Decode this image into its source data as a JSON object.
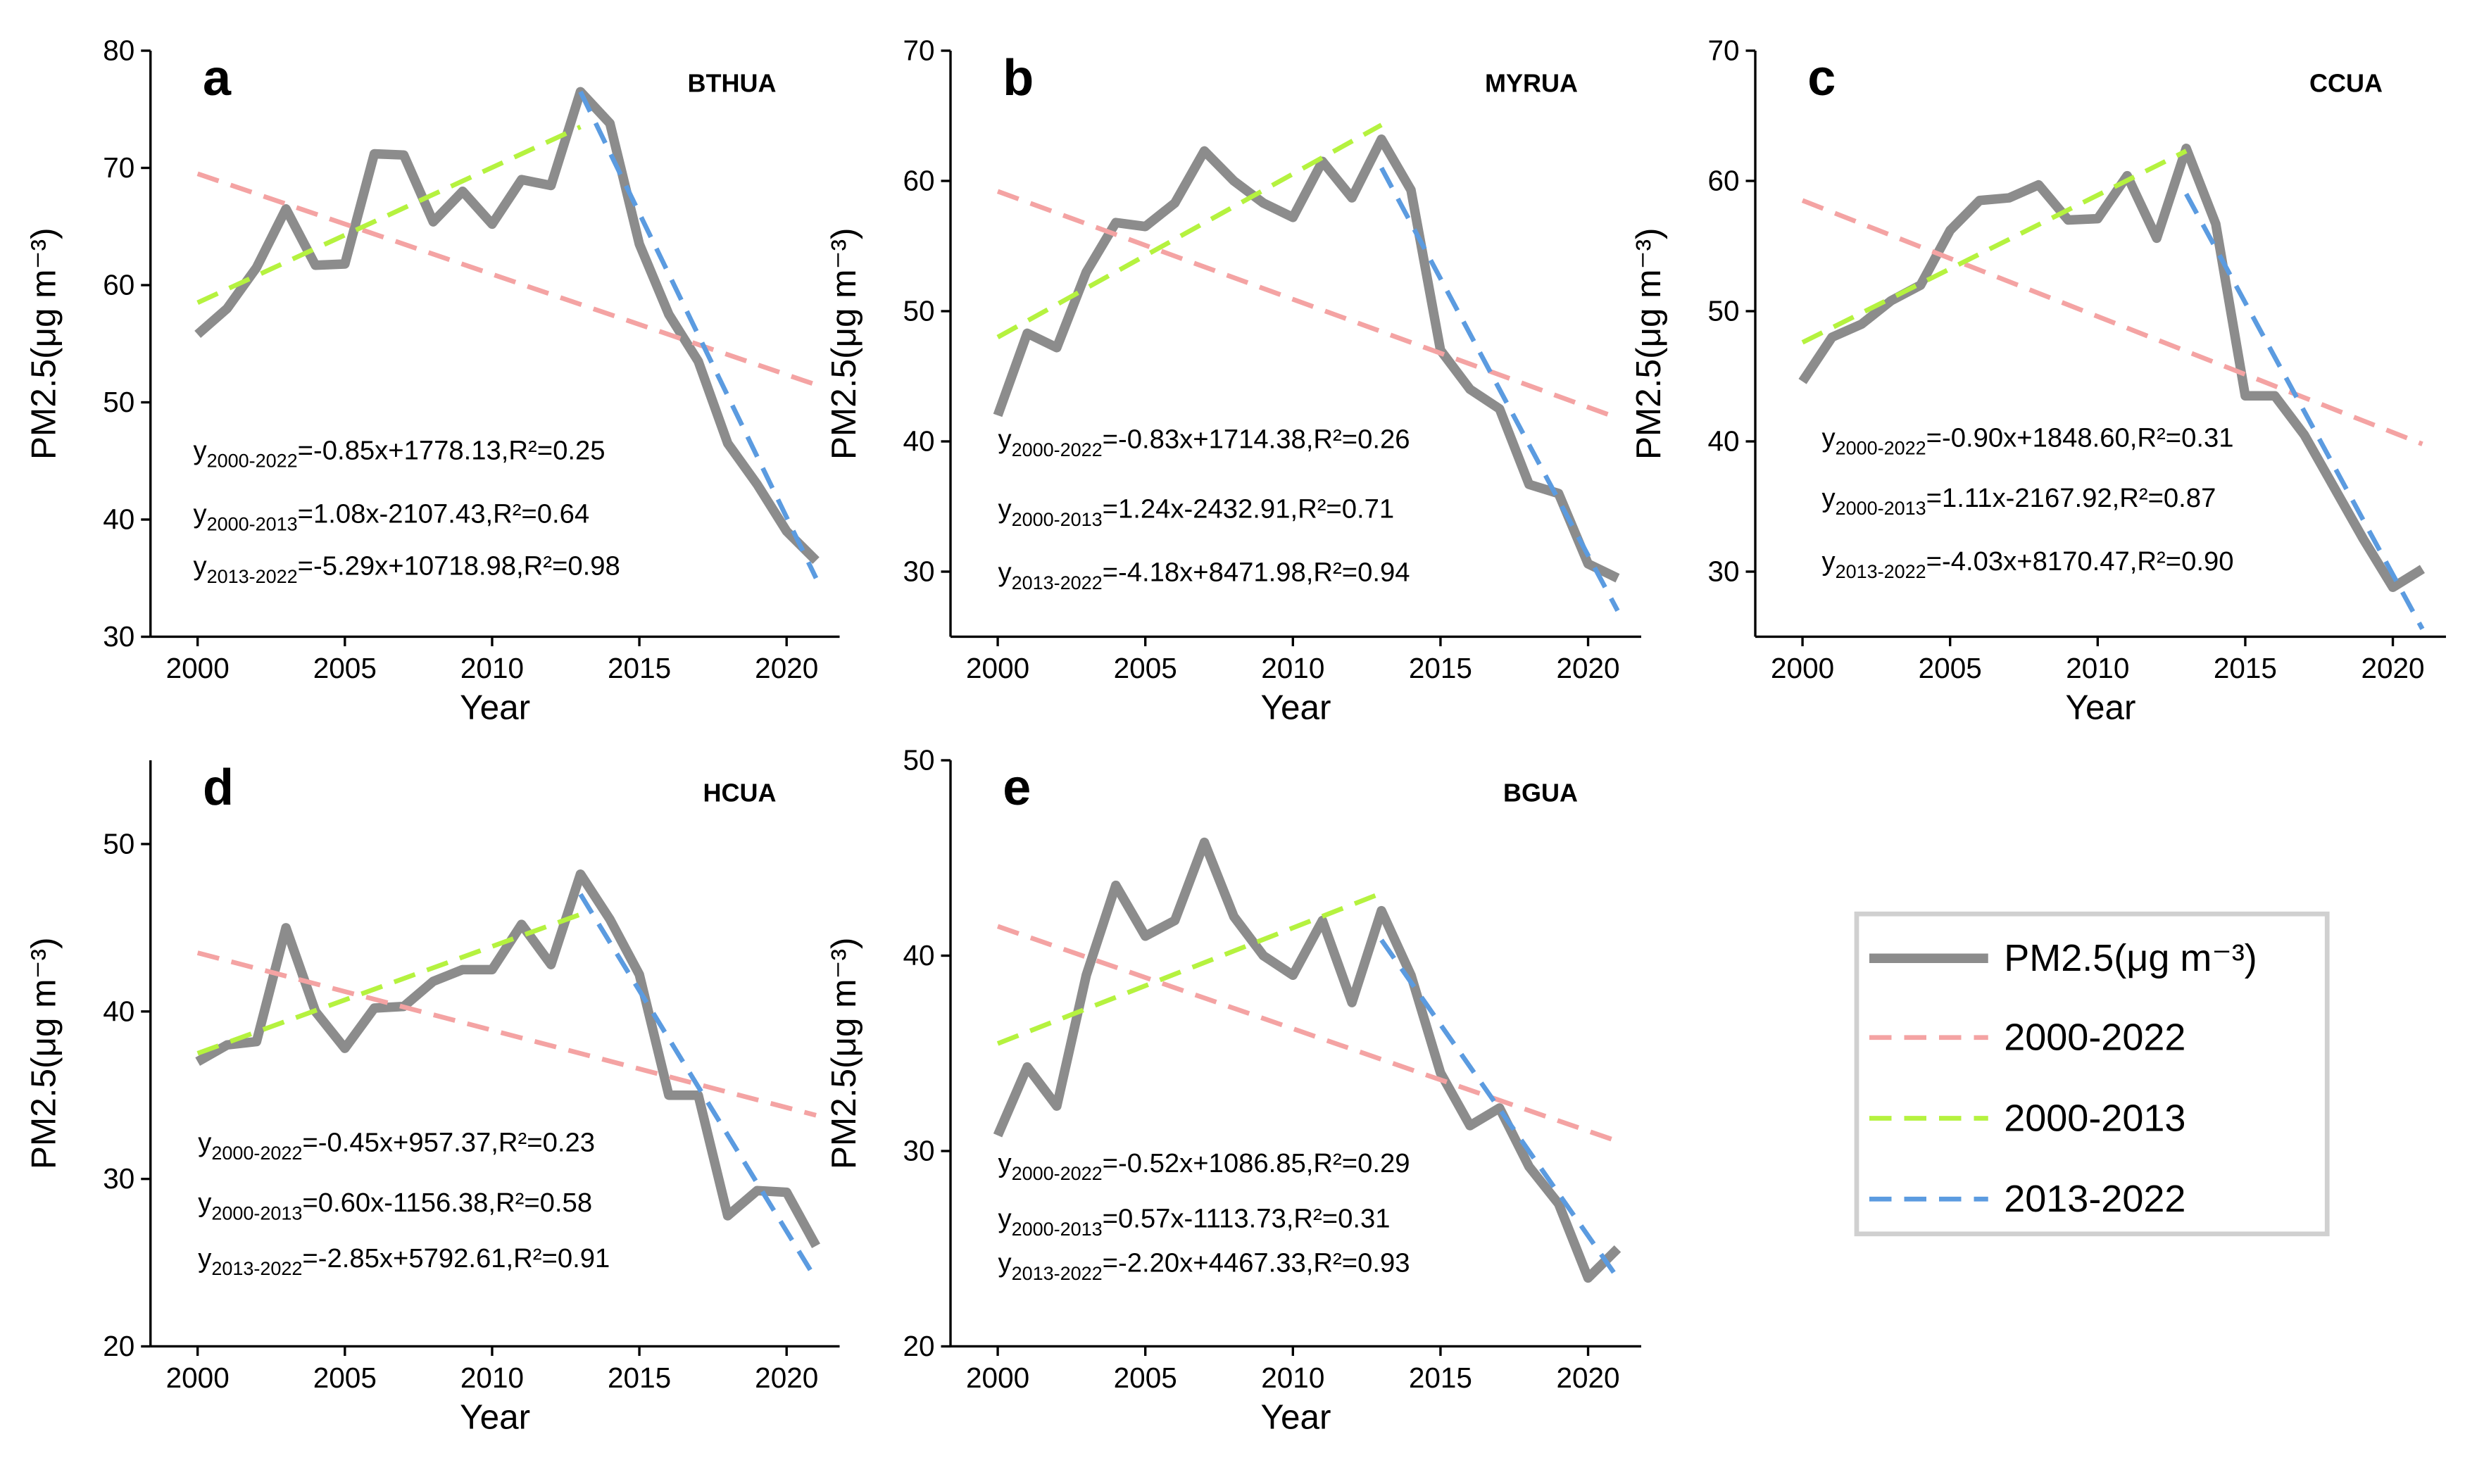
{
  "chart_data": [
    {
      "type": "line",
      "panel": "a",
      "title": "BTHUA",
      "x_label": "Year",
      "y_label": "PM2.5(μg m⁻³)",
      "x": [
        2000,
        2001,
        2002,
        2003,
        2004,
        2005,
        2006,
        2007,
        2008,
        2009,
        2010,
        2011,
        2012,
        2013,
        2014,
        2015,
        2016,
        2017,
        2018,
        2019,
        2020,
        2021
      ],
      "xlim": [
        1998.4,
        2021.8
      ],
      "xticks": [
        2000,
        2005,
        2010,
        2015,
        2020
      ],
      "ylim": [
        30,
        80
      ],
      "yticks": [
        30,
        40,
        50,
        60,
        70,
        80
      ],
      "series": [
        {
          "name": "PM2.5(μg m⁻³)",
          "color": "#8c8c8c",
          "values": [
            55.8,
            58,
            61.5,
            66.5,
            61.7,
            61.8,
            71.2,
            71.1,
            65.4,
            68,
            65.2,
            69,
            68.5,
            76.5,
            73.8,
            63.5,
            57.5,
            53.5,
            46.5,
            43,
            39,
            36.5
          ]
        },
        {
          "name": "2000-2022",
          "color": "#f4a3a3",
          "dash": true,
          "x": [
            2000,
            2021
          ],
          "values": [
            69.5,
            51.5
          ]
        },
        {
          "name": "2000-2013",
          "color": "#b5f23f",
          "dash": true,
          "x": [
            2000,
            2013
          ],
          "values": [
            58.5,
            73.5
          ]
        },
        {
          "name": "2013-2022",
          "color": "#5b9be0",
          "dash": true,
          "x": [
            2013,
            2021
          ],
          "values": [
            76.5,
            35
          ]
        }
      ],
      "annotations": [
        {
          "prefix": "y",
          "subscript": "2000-2022",
          "text": "=-0.85x+1778.13,R²=0.25"
        },
        {
          "prefix": "y",
          "subscript": "2000-2013",
          "text": "=1.08x-2107.43,R²=0.64"
        },
        {
          "prefix": "y",
          "subscript": "2013-2022",
          "text": "=-5.29x+10718.98,R²=0.98"
        }
      ]
    },
    {
      "type": "line",
      "panel": "b",
      "title": "MYRUA",
      "x_label": "Year",
      "y_label": "PM2.5(μg m⁻³)",
      "x": [
        2000,
        2001,
        2002,
        2003,
        2004,
        2005,
        2006,
        2007,
        2008,
        2009,
        2010,
        2011,
        2012,
        2013,
        2014,
        2015,
        2016,
        2017,
        2018,
        2019,
        2020,
        2021
      ],
      "xlim": [
        1998.4,
        2021.8
      ],
      "xticks": [
        2000,
        2005,
        2010,
        2015,
        2020
      ],
      "ylim": [
        25,
        70
      ],
      "yticks": [
        30,
        40,
        50,
        60,
        70
      ],
      "series": [
        {
          "color": "#8c8c8c",
          "values": [
            42,
            48.3,
            47.2,
            53,
            56.8,
            56.5,
            58.3,
            62.3,
            60,
            58.3,
            57.2,
            61.5,
            58.7,
            63.2,
            59.3,
            47,
            44,
            42.5,
            36.7,
            36,
            30.6,
            29.5
          ]
        },
        {
          "color": "#f4a3a3",
          "dash": true,
          "x": [
            2000,
            2021
          ],
          "values": [
            59.2,
            41.8
          ]
        },
        {
          "color": "#b5f23f",
          "dash": true,
          "x": [
            2000,
            2013
          ],
          "values": [
            48,
            64.3
          ]
        },
        {
          "color": "#5b9be0",
          "dash": true,
          "x": [
            2013,
            2021
          ],
          "values": [
            61,
            27
          ]
        }
      ],
      "annotations": [
        {
          "prefix": "y",
          "subscript": "2000-2022",
          "text": "=-0.83x+1714.38,R²=0.26"
        },
        {
          "prefix": "y",
          "subscript": "2000-2013",
          "text": "=1.24x-2432.91,R²=0.71"
        },
        {
          "prefix": "y",
          "subscript": "2013-2022",
          "text": "=-4.18x+8471.98,R²=0.94"
        }
      ]
    },
    {
      "type": "line",
      "panel": "c",
      "title": "CCUA",
      "x_label": "Year",
      "y_label": "PM2.5(μg m⁻³)",
      "x": [
        2000,
        2001,
        2002,
        2003,
        2004,
        2005,
        2006,
        2007,
        2008,
        2009,
        2010,
        2011,
        2012,
        2013,
        2014,
        2015,
        2016,
        2017,
        2018,
        2019,
        2020,
        2021
      ],
      "xlim": [
        1998.4,
        2021.8
      ],
      "xticks": [
        2000,
        2005,
        2010,
        2015,
        2020
      ],
      "ylim": [
        25,
        70
      ],
      "yticks": [
        30,
        40,
        50,
        60,
        70
      ],
      "series": [
        {
          "color": "#8c8c8c",
          "values": [
            44.6,
            48,
            49,
            50.8,
            52,
            56.2,
            58.5,
            58.7,
            59.7,
            57,
            57.1,
            60.4,
            55.6,
            62.5,
            56.7,
            43.5,
            43.5,
            40.5,
            36.5,
            32.5,
            28.8,
            30.2
          ]
        },
        {
          "color": "#f4a3a3",
          "dash": true,
          "x": [
            2000,
            2021
          ],
          "values": [
            58.5,
            39.8
          ]
        },
        {
          "color": "#b5f23f",
          "dash": true,
          "x": [
            2000,
            2013
          ],
          "values": [
            47.6,
            62.3
          ]
        },
        {
          "color": "#5b9be0",
          "dash": true,
          "x": [
            2013,
            2021
          ],
          "values": [
            59,
            25.6
          ]
        }
      ],
      "annotations": [
        {
          "prefix": "y",
          "subscript": "2000-2022",
          "text": "=-0.90x+1848.60,R²=0.31"
        },
        {
          "prefix": "y",
          "subscript": "2000-2013",
          "text": "=1.11x-2167.92,R²=0.87"
        },
        {
          "prefix": "y",
          "subscript": "2013-2022",
          "text": "=-4.03x+8170.47,R²=0.90"
        }
      ]
    },
    {
      "type": "line",
      "panel": "d",
      "title": "HCUA",
      "x_label": "Year",
      "y_label": "PM2.5(μg m⁻³)",
      "x": [
        2000,
        2001,
        2002,
        2003,
        2004,
        2005,
        2006,
        2007,
        2008,
        2009,
        2010,
        2011,
        2012,
        2013,
        2014,
        2015,
        2016,
        2017,
        2018,
        2019,
        2020,
        2021
      ],
      "xlim": [
        1998.4,
        2021.8
      ],
      "xticks": [
        2000,
        2005,
        2010,
        2015,
        2020
      ],
      "ylim": [
        20,
        55
      ],
      "yticks": [
        20,
        30,
        40,
        50
      ],
      "series": [
        {
          "color": "#8c8c8c",
          "values": [
            37,
            38,
            38.2,
            45,
            40,
            37.8,
            40.2,
            40.3,
            41.8,
            42.5,
            42.5,
            45.2,
            42.8,
            48.2,
            45.5,
            42.2,
            35,
            35,
            27.8,
            29.3,
            29.2,
            26
          ]
        },
        {
          "color": "#f4a3a3",
          "dash": true,
          "x": [
            2000,
            2021
          ],
          "values": [
            43.5,
            33.8
          ]
        },
        {
          "color": "#b5f23f",
          "dash": true,
          "x": [
            2000,
            2013
          ],
          "values": [
            37.5,
            45.8
          ]
        },
        {
          "color": "#5b9be0",
          "dash": true,
          "x": [
            2013,
            2021
          ],
          "values": [
            47,
            24
          ]
        }
      ],
      "annotations": [
        {
          "prefix": "y",
          "subscript": "2000-2022",
          "text": "=-0.45x+957.37,R²=0.23"
        },
        {
          "prefix": "y",
          "subscript": "2000-2013",
          "text": "=0.60x-1156.38,R²=0.58"
        },
        {
          "prefix": "y",
          "subscript": "2013-2022",
          "text": "=-2.85x+5792.61,R²=0.91"
        }
      ]
    },
    {
      "type": "line",
      "panel": "e",
      "title": "BGUA",
      "x_label": "Year",
      "y_label": "PM2.5(μg m⁻³)",
      "x": [
        2000,
        2001,
        2002,
        2003,
        2004,
        2005,
        2006,
        2007,
        2008,
        2009,
        2010,
        2011,
        2012,
        2013,
        2014,
        2015,
        2016,
        2017,
        2018,
        2019,
        2020,
        2021
      ],
      "xlim": [
        1998.4,
        2021.8
      ],
      "xticks": [
        2000,
        2005,
        2010,
        2015,
        2020
      ],
      "ylim": [
        20,
        50
      ],
      "yticks": [
        20,
        30,
        40,
        50
      ],
      "series": [
        {
          "color": "#8c8c8c",
          "values": [
            30.8,
            34.3,
            32.3,
            39,
            43.6,
            41,
            41.8,
            45.8,
            42,
            40,
            39,
            41.8,
            37.6,
            42.3,
            39,
            34,
            31.3,
            32.2,
            29.2,
            27.3,
            23.5,
            25
          ]
        },
        {
          "color": "#f4a3a3",
          "dash": true,
          "x": [
            2000,
            2021
          ],
          "values": [
            41.5,
            30.5
          ]
        },
        {
          "color": "#b5f23f",
          "dash": true,
          "x": [
            2000,
            2013
          ],
          "values": [
            35.5,
            43.2
          ]
        },
        {
          "color": "#5b9be0",
          "dash": true,
          "x": [
            2013,
            2021
          ],
          "values": [
            40.8,
            23.5
          ]
        }
      ],
      "annotations": [
        {
          "prefix": "y",
          "subscript": "2000-2022",
          "text": "=-0.52x+1086.85,R²=0.29"
        },
        {
          "prefix": "y",
          "subscript": "2000-2013",
          "text": "=0.57x-1113.73,R²=0.31"
        },
        {
          "prefix": "y",
          "subscript": "2013-2022",
          "text": "=-2.20x+4467.33,R²=0.93"
        }
      ]
    }
  ]
}
